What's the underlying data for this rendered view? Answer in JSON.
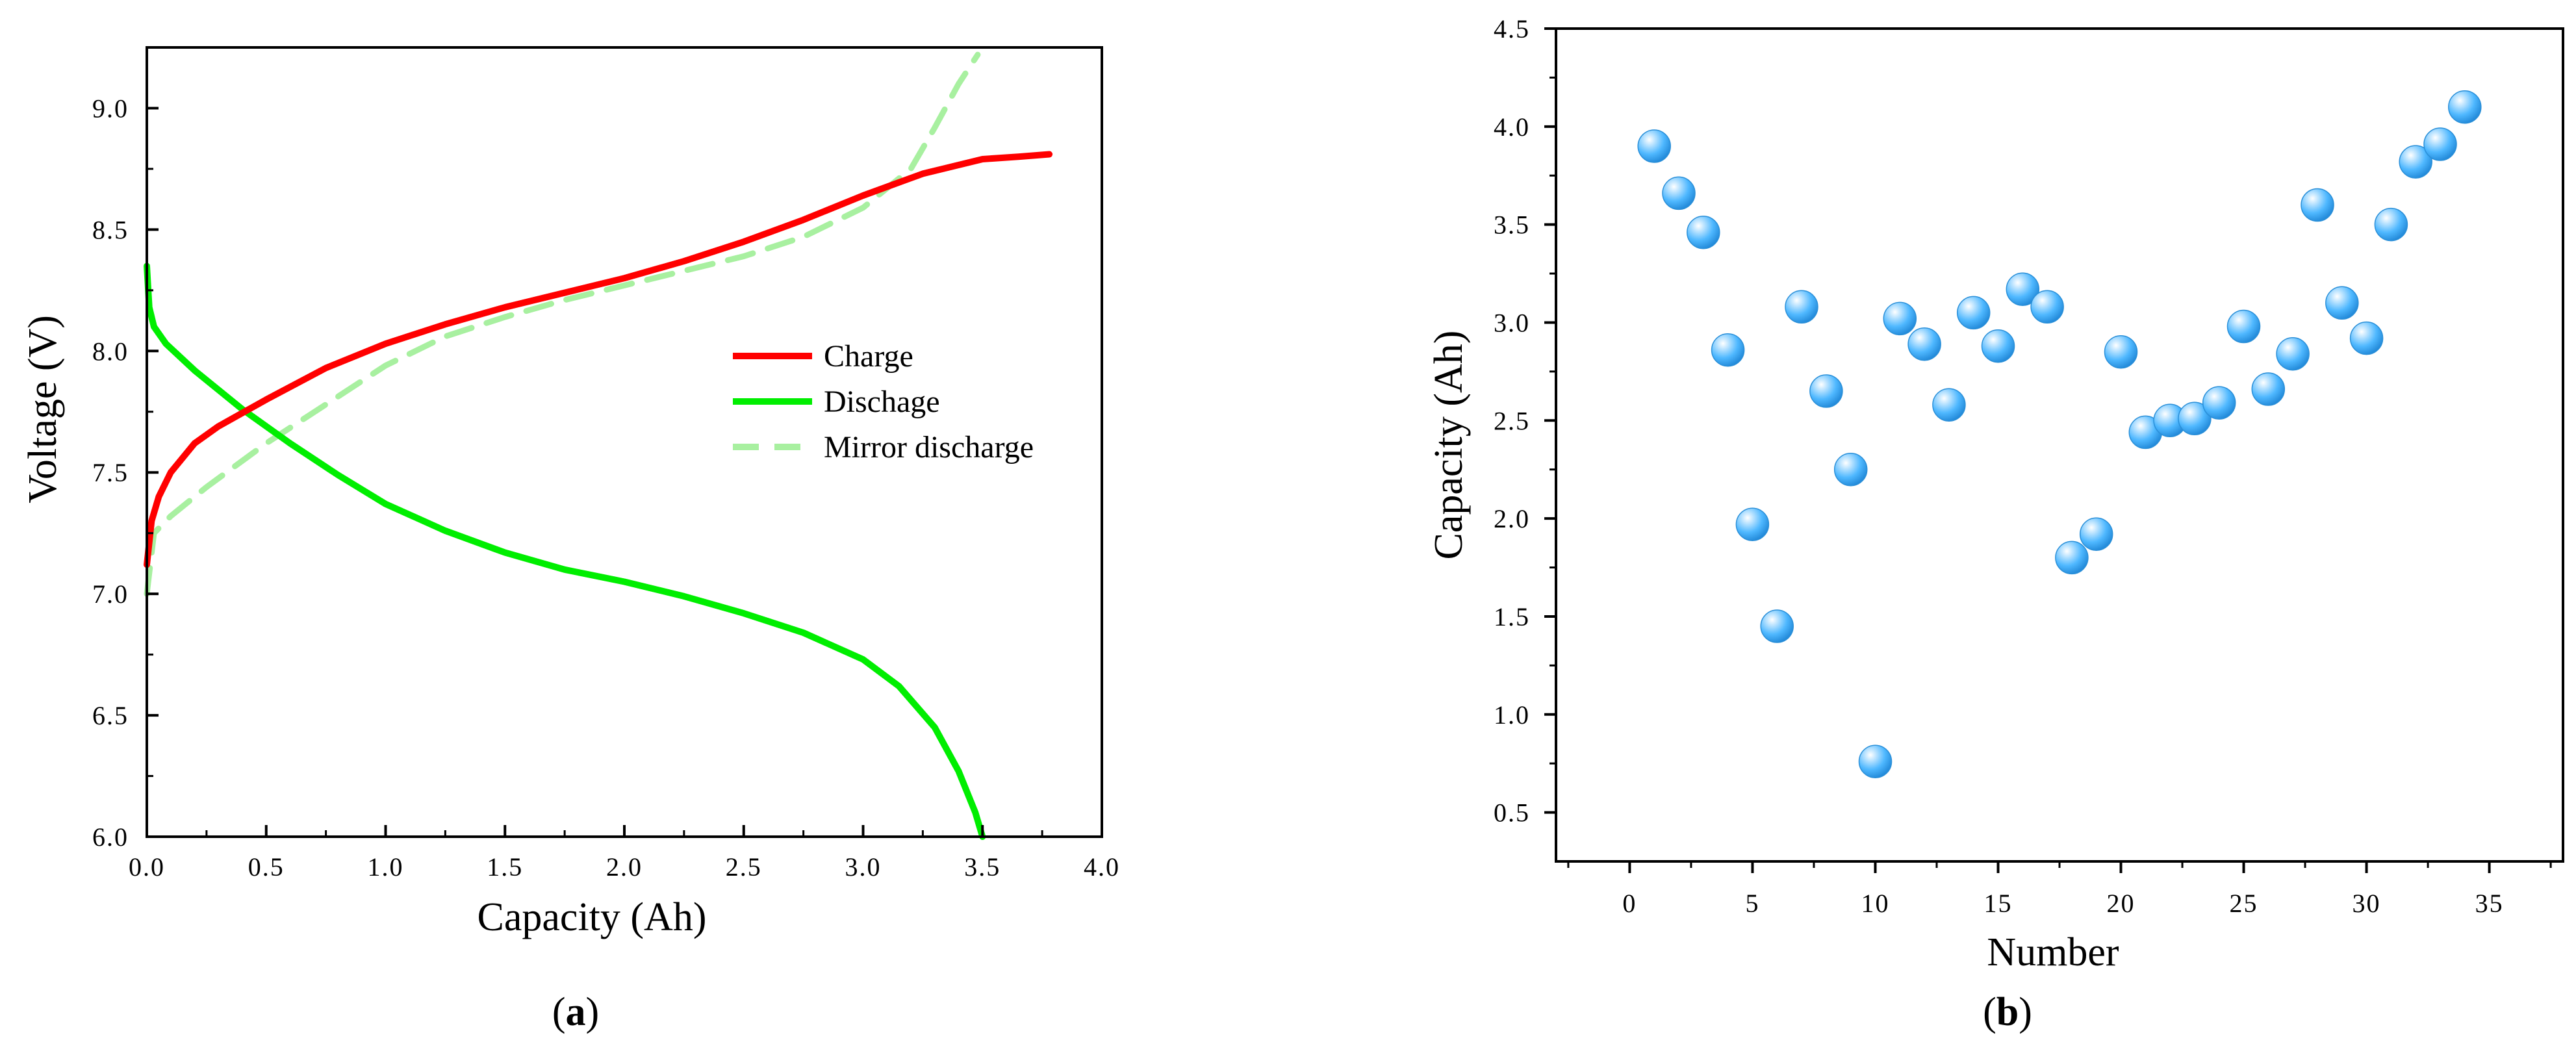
{
  "colors": {
    "charge": "#ff0000",
    "discharge": "#00ee00",
    "mirror": "#a8f0a0",
    "bubble": "#4fb8ff"
  },
  "panel_labels": {
    "a": {
      "open": "(",
      "letter": "a",
      "close": ")"
    },
    "b": {
      "open": "(",
      "letter": "b",
      "close": ")"
    }
  },
  "chart_data": [
    {
      "type": "line",
      "panel": "a",
      "title": "",
      "xlabel": "Capacity (Ah)",
      "ylabel": "Voltage (V)",
      "xlim": [
        0.0,
        4.0
      ],
      "ylim": [
        6.0,
        9.25
      ],
      "x_ticks": [
        "0.0",
        "0.5",
        "1.0",
        "1.5",
        "2.0",
        "2.5",
        "3.0",
        "3.5",
        "4.0"
      ],
      "x_tick_values": [
        0.0,
        0.5,
        1.0,
        1.5,
        2.0,
        2.5,
        3.0,
        3.5,
        4.0
      ],
      "y_ticks": [
        "6.0",
        "6.5",
        "7.0",
        "7.5",
        "8.0",
        "8.5",
        "9.0"
      ],
      "y_tick_values": [
        6.0,
        6.5,
        7.0,
        7.5,
        8.0,
        8.5,
        9.0
      ],
      "legend_position": "center-right",
      "series": [
        {
          "name": "Charge",
          "style": "solid",
          "x": [
            0.0,
            0.02,
            0.05,
            0.1,
            0.2,
            0.3,
            0.5,
            0.75,
            1.0,
            1.25,
            1.5,
            1.75,
            2.0,
            2.25,
            2.5,
            2.75,
            3.0,
            3.25,
            3.5,
            3.65,
            3.78
          ],
          "y": [
            7.12,
            7.3,
            7.4,
            7.5,
            7.62,
            7.69,
            7.8,
            7.93,
            8.03,
            8.11,
            8.18,
            8.24,
            8.3,
            8.37,
            8.45,
            8.54,
            8.64,
            8.73,
            8.79,
            8.8,
            8.81
          ]
        },
        {
          "name": "Dischage",
          "style": "solid",
          "x": [
            0.0,
            0.01,
            0.03,
            0.08,
            0.2,
            0.4,
            0.6,
            0.8,
            1.0,
            1.25,
            1.5,
            1.75,
            2.0,
            2.25,
            2.5,
            2.75,
            3.0,
            3.15,
            3.3,
            3.4,
            3.47,
            3.5
          ],
          "y": [
            8.35,
            8.18,
            8.1,
            8.03,
            7.92,
            7.76,
            7.62,
            7.49,
            7.37,
            7.26,
            7.17,
            7.1,
            7.05,
            6.99,
            6.92,
            6.84,
            6.73,
            6.62,
            6.45,
            6.27,
            6.1,
            6.0
          ]
        },
        {
          "name": "Mirror discharge",
          "style": "dashed",
          "x": [
            0.0,
            0.03,
            0.1,
            0.25,
            0.5,
            0.75,
            1.0,
            1.25,
            1.5,
            1.75,
            2.0,
            2.25,
            2.5,
            2.75,
            3.0,
            3.2,
            3.3,
            3.4,
            3.48
          ],
          "y": [
            7.0,
            7.25,
            7.32,
            7.44,
            7.62,
            7.78,
            7.94,
            8.06,
            8.14,
            8.21,
            8.27,
            8.33,
            8.39,
            8.47,
            8.59,
            8.75,
            8.92,
            9.1,
            9.22
          ]
        }
      ]
    },
    {
      "type": "scatter",
      "panel": "b",
      "title": "",
      "xlabel": "Number",
      "ylabel": "Capacity (Ah)",
      "xlim": [
        -3,
        38
      ],
      "ylim": [
        0.25,
        4.5
      ],
      "x_ticks": [
        "0",
        "5",
        "10",
        "15",
        "20",
        "25",
        "30",
        "35"
      ],
      "x_tick_values": [
        0,
        5,
        10,
        15,
        20,
        25,
        30,
        35
      ],
      "y_ticks": [
        "0.5",
        "1.0",
        "1.5",
        "2.0",
        "2.5",
        "3.0",
        "3.5",
        "4.0",
        "4.5"
      ],
      "y_tick_values": [
        0.5,
        1.0,
        1.5,
        2.0,
        2.5,
        3.0,
        3.5,
        4.0,
        4.5
      ],
      "series": [
        {
          "name": "Capacity",
          "x": [
            1,
            2,
            3,
            4,
            5,
            6,
            7,
            8,
            9,
            10,
            11,
            12,
            13,
            14,
            15,
            16,
            17,
            18,
            19,
            20,
            21,
            22,
            23,
            24,
            25,
            26,
            27,
            28,
            29,
            30,
            31,
            32,
            33,
            34
          ],
          "y": [
            3.9,
            3.66,
            3.46,
            2.86,
            1.97,
            1.45,
            3.08,
            2.65,
            2.25,
            0.76,
            3.02,
            2.89,
            2.58,
            3.05,
            2.88,
            3.17,
            3.08,
            1.8,
            1.92,
            2.85,
            2.44,
            2.5,
            2.51,
            2.59,
            2.98,
            2.66,
            2.84,
            3.6,
            3.1,
            2.92,
            3.5,
            3.82,
            3.91,
            4.1
          ]
        }
      ]
    }
  ]
}
